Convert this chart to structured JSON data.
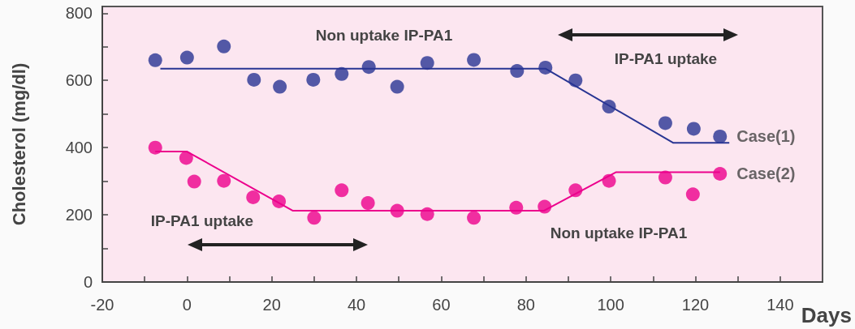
{
  "chart_data": {
    "type": "scatter",
    "xlabel": "Days",
    "ylabel": "Cholesterol (mg/dl)",
    "xlim": [
      -20,
      150
    ],
    "ylim": [
      0,
      820
    ],
    "xticks": [
      -20,
      {
        "value": -10,
        "label": null
      },
      0,
      {
        "value": 10,
        "label": null
      },
      20,
      {
        "value": 30,
        "label": null
      },
      40,
      {
        "value": 50,
        "label": null
      },
      60,
      {
        "value": 70,
        "label": null
      },
      80,
      {
        "value": 90,
        "label": null
      },
      100,
      {
        "value": 110,
        "label": null
      },
      120,
      {
        "value": 130,
        "label": null
      },
      140
    ],
    "yticks": [
      0,
      {
        "value": 100,
        "label": null
      },
      200,
      {
        "value": 300,
        "label": null
      },
      400,
      {
        "value": 500,
        "label": null
      },
      600,
      {
        "value": 700,
        "label": null
      },
      800
    ],
    "series": [
      {
        "name": "Case(1)",
        "color": "#283593",
        "x": [
          -7.5,
          0,
          8.7,
          15.8,
          21.9,
          29.8,
          36.5,
          42.9,
          49.6,
          56.7,
          67.7,
          77.9,
          84.6,
          91.7,
          99.6,
          112.9,
          119.6,
          125.8
        ],
        "values": [
          660,
          668,
          701,
          602,
          581,
          602,
          619,
          640,
          581,
          652,
          661,
          628,
          638,
          600,
          522,
          473,
          456,
          433
        ]
      },
      {
        "name": "Case(2)",
        "color": "#ec008c",
        "x": [
          -7.5,
          -0.2,
          1.7,
          8.7,
          15.6,
          21.7,
          30,
          36.5,
          42.7,
          49.6,
          56.7,
          67.7,
          77.7,
          84.4,
          91.7,
          99.6,
          112.9,
          119.4,
          125.8
        ],
        "values": [
          400,
          369,
          299,
          301,
          252,
          240,
          191,
          273,
          235,
          212,
          202,
          191,
          221,
          224,
          273,
          301,
          311,
          261,
          322
        ]
      },
      {
        "type": "line",
        "color": "#283593",
        "x": [
          -6.3,
          84.6,
          114.8,
          128
        ],
        "values": [
          635,
          635,
          414,
          414
        ]
      },
      {
        "type": "line",
        "color": "#ec008c",
        "x": [
          -7.5,
          0,
          25,
          84.2,
          101.3,
          125.8
        ],
        "values": [
          388,
          388,
          212,
          212,
          327,
          327
        ]
      }
    ],
    "annotations": [
      "Non uptake IP-PA1",
      "IP-PA1 uptake",
      "IP-PA1 uptake",
      "Non uptake IP-PA1"
    ]
  }
}
